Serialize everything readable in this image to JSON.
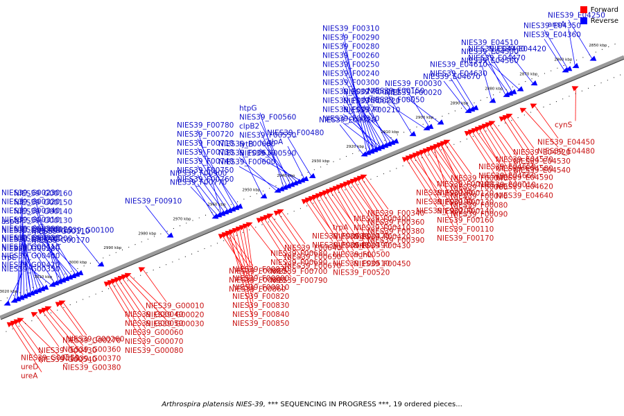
{
  "legend": {
    "forward_label": "Forward",
    "forward_color": "#ff0000",
    "reverse_label": "Reverse",
    "reverse_color": "#0000ff"
  },
  "caption": {
    "organism": "Arthrospira platensis NIES-39,",
    "rest": " *** SEQUENCING IN PROGRESS ***, 19 ordered pieces..."
  },
  "backbone": {
    "start_kbp": 3025,
    "end_kbp": 2845,
    "ticks_kbp": [
      "3020 kbp",
      "3010 kbp",
      "3000 kbp",
      "2990 kbp",
      "2980 kbp",
      "2970 kbp",
      "2960 kbp",
      "2950 kbp",
      "2940 kbp",
      "2930 kbp",
      "2920 kbp",
      "2910 kbp",
      "2900 kbp",
      "2890 kbp",
      "2880 kbp",
      "2870 kbp",
      "2860 kbp",
      "2850 kbp"
    ]
  },
  "reverse_genes": [
    {
      "label": "NIES39_G00350",
      "kbp": 3022
    },
    {
      "label": "NIES39_G00230",
      "kbp": 3019
    },
    {
      "label": "NIES39_G00320",
      "kbp": 3017
    },
    {
      "label": "aspC",
      "kbp": 3014
    },
    {
      "label": "NIES39_G00340",
      "kbp": 3016
    },
    {
      "label": "NIES39_G00160",
      "kbp": 3007
    },
    {
      "label": "NIES39_G00310",
      "kbp": 3015
    },
    {
      "label": "NIES39_G00150",
      "kbp": 3006
    },
    {
      "label": "NIES39_G00300",
      "kbp": 3013
    },
    {
      "label": "NIES39_G00140",
      "kbp": 3005
    },
    {
      "label": "NIES39_G00290",
      "kbp": 3012
    },
    {
      "label": "NIES39_G00130",
      "kbp": 3004
    },
    {
      "label": "NIES39_G00280",
      "kbp": 3011
    },
    {
      "label": "NIES39_G00120",
      "kbp": 3003
    },
    {
      "label": "trpE",
      "kbp": 3009
    },
    {
      "label": "NIES39_G00110",
      "kbp": 3002
    },
    {
      "label": "NIES39_G00390",
      "kbp": 3018
    },
    {
      "label": "NIES39_G00200",
      "kbp": 3006
    },
    {
      "label": "NIES39_G00100",
      "kbp": 2995
    },
    {
      "label": "NIES39_G00330",
      "kbp": 3015
    },
    {
      "label": "NIES39_G00170",
      "kbp": 3001
    },
    {
      "label": "NIES39_G00410",
      "kbp": 3019
    },
    {
      "label": "psaD",
      "kbp": 3008
    },
    {
      "label": "NIES39_G00400",
      "kbp": 3018
    },
    {
      "label": "NIES39_G00420",
      "kbp": 3020
    },
    {
      "label": "NIES39_F00910",
      "kbp": 2975
    },
    {
      "label": "NIES39_F00900",
      "kbp": 2962
    },
    {
      "label": "NIES39_F00780",
      "kbp": 2960
    },
    {
      "label": "NIES39_F00720",
      "kbp": 2956
    },
    {
      "label": "NIES39_F00710",
      "kbp": 2955
    },
    {
      "label": "NIES39_F00730",
      "kbp": 2957
    },
    {
      "label": "NIES39_F00740",
      "kbp": 2958
    },
    {
      "label": "NIES39_F00660",
      "kbp": 2948
    },
    {
      "label": "NIES39_F00750",
      "kbp": 2959
    },
    {
      "label": "NIES39_F00760",
      "kbp": 2960
    },
    {
      "label": "NIES39_F00770",
      "kbp": 2961
    },
    {
      "label": "NIES39_F00610",
      "kbp": 2944
    },
    {
      "label": "NIES39_F00600",
      "kbp": 2943
    },
    {
      "label": "htpG",
      "kbp": 2942
    },
    {
      "label": "NIES39_F00560",
      "kbp": 2940
    },
    {
      "label": "clpB2",
      "kbp": 2941
    },
    {
      "label": "NIES39_F00550",
      "kbp": 2939
    },
    {
      "label": "lytB",
      "kbp": 2938
    },
    {
      "label": "NIES39_F00480",
      "kbp": 2934
    },
    {
      "label": "NIES39_F00590",
      "kbp": 2937
    },
    {
      "label": "gloA",
      "kbp": 2936
    },
    {
      "label": "NIES39_F00320",
      "kbp": 2919
    },
    {
      "label": "NIES39_F00310",
      "kbp": 2918
    },
    {
      "label": "NIES39_F00290",
      "kbp": 2917
    },
    {
      "label": "NIES39_F00280",
      "kbp": 2916
    },
    {
      "label": "NIES39_F00260",
      "kbp": 2915
    },
    {
      "label": "NIES39_F00250",
      "kbp": 2914
    },
    {
      "label": "NIES39_F00240",
      "kbp": 2913
    },
    {
      "label": "NIES39_F00230",
      "kbp": 2912
    },
    {
      "label": "NIES39_F00220",
      "kbp": 2911
    },
    {
      "label": "NIES39_F00210",
      "kbp": 2910
    },
    {
      "label": "NIES39_F00300",
      "kbp": 2917
    },
    {
      "label": "NIES39_F00270",
      "kbp": 2916
    },
    {
      "label": "NIES39_F00350",
      "kbp": 2915
    },
    {
      "label": "NIES39_F00370",
      "kbp": 2914
    },
    {
      "label": "NIES39_F00150",
      "kbp": 2905
    },
    {
      "label": "NIES39_F00030",
      "kbp": 2900
    },
    {
      "label": "NIES39_F00050",
      "kbp": 2901
    },
    {
      "label": "NIES39_F00330",
      "kbp": 2915
    },
    {
      "label": "NIES39_E04510",
      "kbp": 2878
    },
    {
      "label": "NIES39_E04500",
      "kbp": 2877
    },
    {
      "label": "NIES39_E04350",
      "kbp": 2860
    },
    {
      "label": "NIES39_E04360",
      "kbp": 2861
    },
    {
      "label": "NIES39_F00020",
      "kbp": 2897
    },
    {
      "label": "NIES39_E04490",
      "kbp": 2876
    },
    {
      "label": "NIES39_E04670",
      "kbp": 2889
    },
    {
      "label": "NIES39_E04470",
      "kbp": 2874
    },
    {
      "label": "NIES39_E04250",
      "kbp": 2853
    },
    {
      "label": "NIES39_E04610",
      "kbp": 2887
    },
    {
      "label": "NIES39_E04420",
      "kbp": 2870
    },
    {
      "label": "ansA",
      "kbp": 2858
    },
    {
      "label": "NIES39_E04560",
      "kbp": 2882
    },
    {
      "label": "NIES39_E04630",
      "kbp": 2888
    }
  ],
  "forward_genes": [
    {
      "label": "cynS",
      "kbp": 2860
    },
    {
      "label": "NIES39_E04450",
      "kbp": 2872
    },
    {
      "label": "NIES39_E04480",
      "kbp": 2875
    },
    {
      "label": "NIES39_E04520",
      "kbp": 2879
    },
    {
      "label": "NIES39_E04530",
      "kbp": 2880
    },
    {
      "label": "NIES39_E04540",
      "kbp": 2881
    },
    {
      "label": "NIES39_E04570",
      "kbp": 2884
    },
    {
      "label": "NIES39_E04580",
      "kbp": 2885
    },
    {
      "label": "NIES39_E04590",
      "kbp": 2886
    },
    {
      "label": "NIES39_E04620",
      "kbp": 2887
    },
    {
      "label": "NIES39_E04640",
      "kbp": 2888
    },
    {
      "label": "NIES39_E04650",
      "kbp": 2889
    },
    {
      "label": "NIES39_E04660",
      "kbp": 2890
    },
    {
      "label": "NIES39_E00010",
      "kbp": 2891
    },
    {
      "label": "NIES39_F00040",
      "kbp": 2897
    },
    {
      "label": "NIES39_F00060",
      "kbp": 2898
    },
    {
      "label": "NIES39_F00070",
      "kbp": 2899
    },
    {
      "label": "NIES39_F00080",
      "kbp": 2900
    },
    {
      "label": "NIES39_F00100",
      "kbp": 2901
    },
    {
      "label": "NIES39_F00120",
      "kbp": 2902
    },
    {
      "label": "NIES39_F00130",
      "kbp": 2903
    },
    {
      "label": "NIES39_F00140",
      "kbp": 2904
    },
    {
      "label": "NIES39_F00160",
      "kbp": 2905
    },
    {
      "label": "NIES39_F00090",
      "kbp": 2899
    },
    {
      "label": "NIES39_F00110",
      "kbp": 2901
    },
    {
      "label": "NIES39_F00170",
      "kbp": 2906
    },
    {
      "label": "NIES39_F00180",
      "kbp": 2907
    },
    {
      "label": "NIES39_F00190",
      "kbp": 2908
    },
    {
      "label": "NIES39_F00200",
      "kbp": 2909
    },
    {
      "label": "NIES39_F00340",
      "kbp": 2921
    },
    {
      "label": "NIES39_F00360",
      "kbp": 2922
    },
    {
      "label": "NIES39_F00380",
      "kbp": 2923
    },
    {
      "label": "NIES39_F00390",
      "kbp": 2924
    },
    {
      "label": "NIES39_F00400",
      "kbp": 2925
    },
    {
      "label": "NIES39_F00410",
      "kbp": 2926
    },
    {
      "label": "NIES39_F00420",
      "kbp": 2927
    },
    {
      "label": "NIES39_F00430",
      "kbp": 2928
    },
    {
      "label": "ndhL",
      "kbp": 2929
    },
    {
      "label": "NIES39_F00450",
      "kbp": 2930
    },
    {
      "label": "trpA",
      "kbp": 2931
    },
    {
      "label": "NIES39_F00470",
      "kbp": 2932
    },
    {
      "label": "NIES39_F00490",
      "kbp": 2933
    },
    {
      "label": "NIES39_F00500",
      "kbp": 2934
    },
    {
      "label": "NIES39_F00510",
      "kbp": 2935
    },
    {
      "label": "NIES39_F00520",
      "kbp": 2936
    },
    {
      "label": "NIES39_F00530",
      "kbp": 2937
    },
    {
      "label": "NIES39_F00540",
      "kbp": 2938
    },
    {
      "label": "NIES39_F00640",
      "kbp": 2945
    },
    {
      "label": "NIES39_F00650",
      "kbp": 2946
    },
    {
      "label": "NIES39_F00670",
      "kbp": 2948
    },
    {
      "label": "NIES39_F00680",
      "kbp": 2949
    },
    {
      "label": "NIES39_F00690",
      "kbp": 2950
    },
    {
      "label": "NIES39_F00700",
      "kbp": 2951
    },
    {
      "label": "NIES39_F00880",
      "kbp": 2961
    },
    {
      "label": "NIES39_F00890",
      "kbp": 2962
    },
    {
      "label": "NIES39_F00870",
      "kbp": 2960
    },
    {
      "label": "NIES39_F00790",
      "kbp": 2954
    },
    {
      "label": "NIES39_F00800",
      "kbp": 2955
    },
    {
      "label": "NIES39_F00810",
      "kbp": 2956
    },
    {
      "label": "NIES39_F00820",
      "kbp": 2957
    },
    {
      "label": "NIES39_F00830",
      "kbp": 2958
    },
    {
      "label": "NIES39_F00840",
      "kbp": 2959
    },
    {
      "label": "NIES39_F00850",
      "kbp": 2960
    },
    {
      "label": "NIES39_F00860",
      "kbp": 2961
    },
    {
      "label": "NIES39_G00010",
      "kbp": 2985
    },
    {
      "label": "NIES39_G00020",
      "kbp": 2989
    },
    {
      "label": "NIES39_G00030",
      "kbp": 2990
    },
    {
      "label": "NIES39_G00040",
      "kbp": 2991
    },
    {
      "label": "NIES39_G00050",
      "kbp": 2992
    },
    {
      "label": "NIES39_G00060",
      "kbp": 2993
    },
    {
      "label": "NIES39_G00070",
      "kbp": 2994
    },
    {
      "label": "NIES39_G00080",
      "kbp": 2995
    },
    {
      "label": "NIES39_G00260",
      "kbp": 3008
    },
    {
      "label": "NIES39_G00270",
      "kbp": 3009
    },
    {
      "label": "NIES39_G00360",
      "kbp": 3012
    },
    {
      "label": "NIES39_G00370",
      "kbp": 3013
    },
    {
      "label": "NIES39_G00380",
      "kbp": 3014
    },
    {
      "label": "NIES39_G00430",
      "kbp": 3016
    },
    {
      "label": "NIES39_G00540",
      "kbp": 3020
    },
    {
      "label": "NIES39_G00550",
      "kbp": 3021
    },
    {
      "label": "ureD",
      "kbp": 3022
    },
    {
      "label": "ureA",
      "kbp": 3023
    }
  ]
}
